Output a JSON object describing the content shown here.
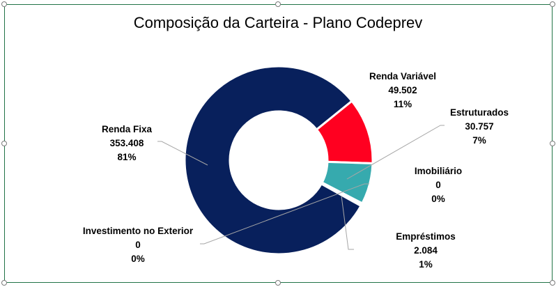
{
  "chart_data": {
    "type": "pie",
    "variant": "donut",
    "title": "Composição da Carteira - Plano Codeprev",
    "start_angle_deg": 51,
    "slices": [
      {
        "name": "Renda Variável",
        "value": 49502,
        "value_label": "49.502",
        "percent_label": "11%",
        "color": "#FF0020"
      },
      {
        "name": "Estruturados",
        "value": 30757,
        "value_label": "30.757",
        "percent_label": "7%",
        "color": "#36AAAE"
      },
      {
        "name": "Imobiliário",
        "value": 0,
        "value_label": "0",
        "percent_label": "0%",
        "color": "#4A90D9"
      },
      {
        "name": "Empréstimos",
        "value": 2084,
        "value_label": "2.084",
        "percent_label": "1%",
        "color": "#FFFFFF"
      },
      {
        "name": "Investimento no Exterior",
        "value": 0,
        "value_label": "0",
        "percent_label": "0%",
        "color": "#7F7F7F"
      },
      {
        "name": "Renda Fixa",
        "value": 353408,
        "value_label": "353.408",
        "percent_label": "81%",
        "color": "#08205C"
      }
    ]
  }
}
